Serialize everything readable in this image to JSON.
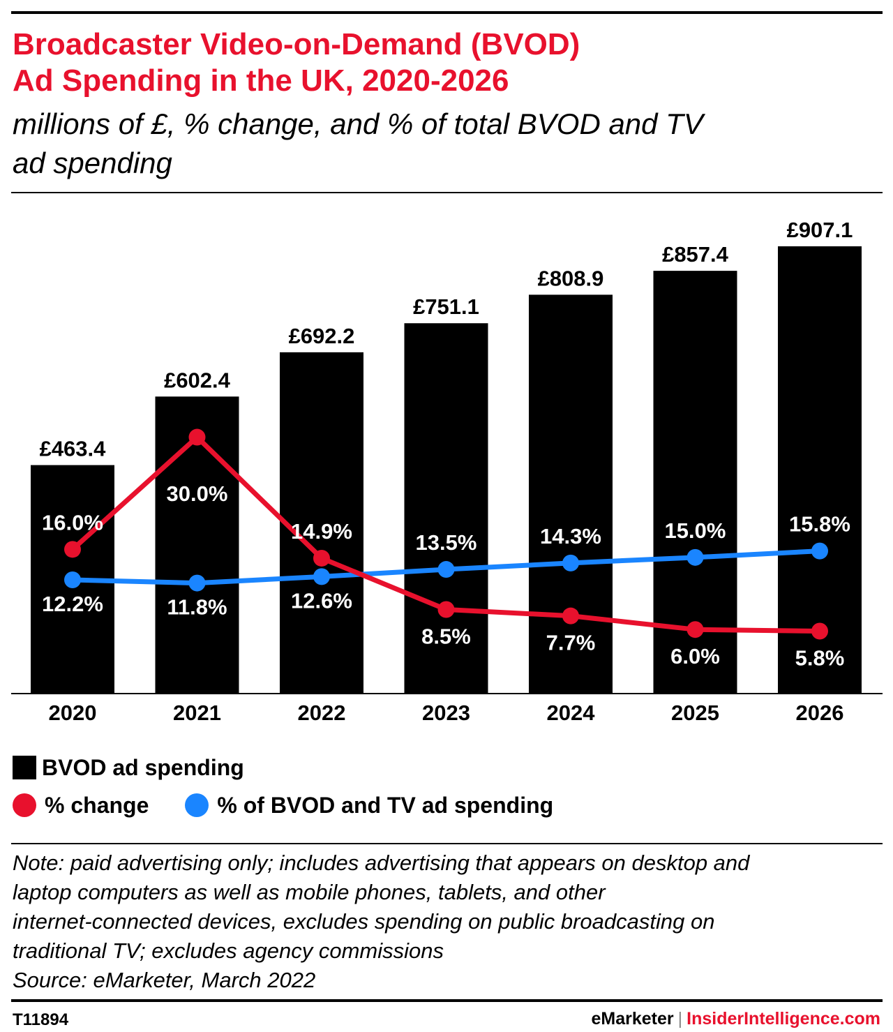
{
  "header": {
    "title_line1": "Broadcaster Video-on-Demand (BVOD)",
    "title_line2": "Ad Spending in the UK, 2020-2026",
    "subtitle_line1": "millions of £, % change, and % of total BVOD and TV",
    "subtitle_line2": "ad spending"
  },
  "chart_data": {
    "type": "bar",
    "title": "Broadcaster Video-on-Demand (BVOD) Ad Spending in the UK, 2020-2026",
    "subtitle": "millions of £, % change, and % of total BVOD and TV ad spending",
    "categories": [
      "2020",
      "2021",
      "2022",
      "2023",
      "2024",
      "2025",
      "2026"
    ],
    "ylim": [
      0,
      907.1
    ],
    "pct_range": [
      0,
      30
    ],
    "grid": false,
    "legend_position": "bottom",
    "series": [
      {
        "name": "BVOD ad spending",
        "kind": "bar",
        "color": "#000000",
        "values": [
          463.4,
          602.4,
          692.2,
          751.1,
          808.9,
          857.4,
          907.1
        ],
        "labels": [
          "£463.4",
          "£602.4",
          "£692.2",
          "£751.1",
          "£808.9",
          "£857.4",
          "£907.1"
        ]
      },
      {
        "name": "% change",
        "kind": "line",
        "color": "#e8112d",
        "values": [
          16.0,
          30.0,
          14.9,
          8.5,
          7.7,
          6.0,
          5.8
        ],
        "labels": [
          "16.0%",
          "30.0%",
          "14.9%",
          "8.5%",
          "7.7%",
          "6.0%",
          "5.8%"
        ]
      },
      {
        "name": "% of BVOD and TV ad spending",
        "kind": "line",
        "color": "#1a85ff",
        "values": [
          12.2,
          11.8,
          12.6,
          13.5,
          14.3,
          15.0,
          15.8
        ],
        "labels": [
          "12.2%",
          "11.8%",
          "12.6%",
          "13.5%",
          "14.3%",
          "15.0%",
          "15.8%"
        ]
      }
    ]
  },
  "legend": {
    "bar_label": "BVOD ad spending",
    "change_label": "% change",
    "share_label": "% of BVOD and TV ad spending"
  },
  "note": {
    "line1": "Note: paid advertising only; includes advertising that appears on desktop and",
    "line2": "laptop computers as well as mobile phones, tablets, and other",
    "line3": "internet-connected devices, excludes spending on public broadcasting on",
    "line4": "traditional TV; excludes agency commissions",
    "line5": "Source: eMarketer, March 2022"
  },
  "footer": {
    "chart_id": "T11894",
    "brand_left": "eMarketer",
    "separator": "|",
    "brand_right": "InsiderIntelligence.com"
  }
}
